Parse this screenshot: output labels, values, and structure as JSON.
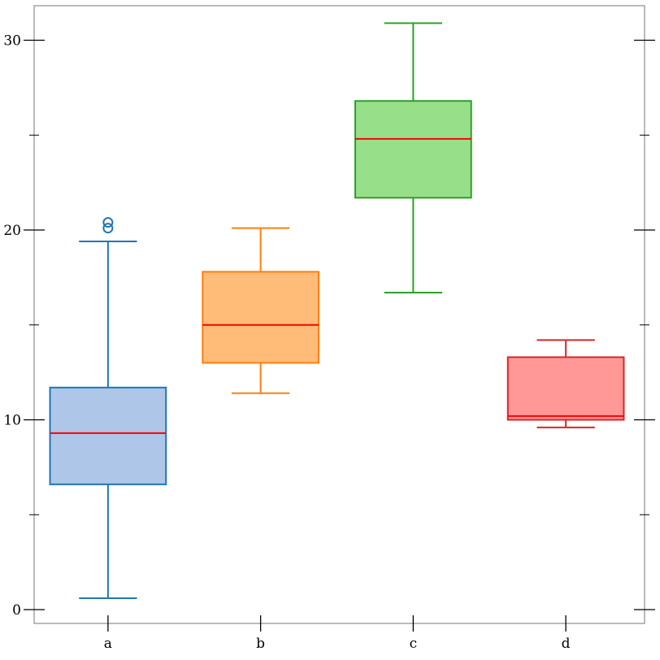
{
  "chart_data": {
    "type": "box",
    "title": "",
    "xlabel": "",
    "ylabel": "",
    "ylim": [
      0,
      31.7
    ],
    "y_ticks": [
      0,
      10,
      20,
      30
    ],
    "y_minor_ticks": [
      5,
      15,
      25
    ],
    "grid": false,
    "categories": [
      "a",
      "b",
      "c",
      "d"
    ],
    "boxes": [
      {
        "category": "a",
        "whisker_low": 0.6,
        "q1": 6.6,
        "median": 9.3,
        "q3": 11.7,
        "whisker_high": 19.4,
        "outliers": [
          20.1,
          20.4
        ],
        "edge_color": "#1f77b4",
        "fill_color": "#aec7e8"
      },
      {
        "category": "b",
        "whisker_low": 11.4,
        "q1": 13.0,
        "median": 15.0,
        "q3": 17.8,
        "whisker_high": 20.1,
        "outliers": [],
        "edge_color": "#ff7f0e",
        "fill_color": "#ffbb78"
      },
      {
        "category": "c",
        "whisker_low": 16.7,
        "q1": 21.7,
        "median": 24.8,
        "q3": 26.8,
        "whisker_high": 30.9,
        "outliers": [],
        "edge_color": "#2ca02c",
        "fill_color": "#98df8a"
      },
      {
        "category": "d",
        "whisker_low": 9.6,
        "q1": 10.0,
        "median": 10.2,
        "q3": 13.3,
        "whisker_high": 14.2,
        "outliers": [],
        "edge_color": "#d62728",
        "fill_color": "#ff9896"
      }
    ],
    "median_color": "#ff0000"
  }
}
